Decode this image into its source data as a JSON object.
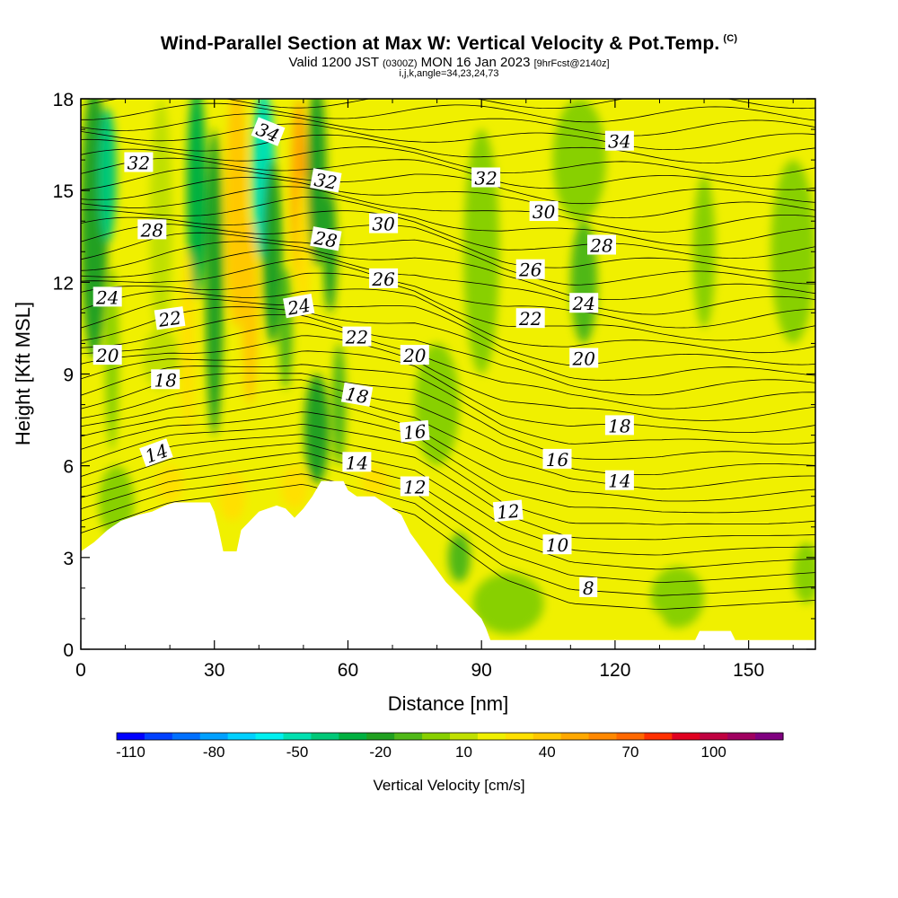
{
  "header": {
    "title": "Wind-Parallel Section at Max W: Vertical Velocity & Pot.Temp.",
    "title_mark": "(C)",
    "subtitle_prefix": "Valid 1200 JST",
    "subtitle_zulu": "(0300Z)",
    "subtitle_date": "MON 16 Jan 2023",
    "subtitle_forecast": "[9hrFcst@2140z]",
    "params": "i,j,k,angle=34,23,24,73"
  },
  "chart_data": {
    "type": "heatmap",
    "xlabel": "Distance [nm]",
    "ylabel": "Height [Kft MSL]",
    "xlim": [
      0,
      165
    ],
    "ylim": [
      0,
      18
    ],
    "x_ticks": [
      0,
      30,
      60,
      90,
      120,
      150
    ],
    "y_ticks": [
      0,
      3,
      6,
      9,
      12,
      15,
      18
    ],
    "colorbar": {
      "title": "Vertical Velocity [cm/s]",
      "min": -115,
      "max": 125,
      "step": 10,
      "tick_labels": [
        "-110",
        "-80",
        "-50",
        "-20",
        "10",
        "40",
        "70",
        "100"
      ],
      "tick_values": [
        -110,
        -80,
        -50,
        -20,
        10,
        40,
        70,
        100
      ],
      "colors": [
        "#0000ff",
        "#0040ff",
        "#0070ff",
        "#00a0ff",
        "#00d0ff",
        "#00f0f0",
        "#00e0b0",
        "#00c878",
        "#00b040",
        "#20a020",
        "#50b818",
        "#88d000",
        "#c0e000",
        "#f0f000",
        "#ffe000",
        "#ffc800",
        "#ffa800",
        "#ff8800",
        "#ff6800",
        "#ff3000",
        "#e00020",
        "#c00040",
        "#a00060",
        "#800080"
      ]
    },
    "terrain": [
      [
        0,
        3.2
      ],
      [
        3,
        3.5
      ],
      [
        6,
        3.9
      ],
      [
        9,
        4.2
      ],
      [
        13,
        4.4
      ],
      [
        16,
        4.5
      ],
      [
        19,
        4.7
      ],
      [
        21,
        4.8
      ],
      [
        29,
        4.8
      ],
      [
        30,
        4.5
      ],
      [
        31,
        3.9
      ],
      [
        32,
        3.2
      ],
      [
        35,
        3.2
      ],
      [
        36,
        3.9
      ],
      [
        38,
        4.2
      ],
      [
        40,
        4.5
      ],
      [
        42,
        4.6
      ],
      [
        44,
        4.7
      ],
      [
        46,
        4.6
      ],
      [
        48,
        4.3
      ],
      [
        50,
        4.6
      ],
      [
        52,
        5.0
      ],
      [
        54,
        5.5
      ],
      [
        59,
        5.5
      ],
      [
        60,
        5.2
      ],
      [
        62,
        5.0
      ],
      [
        66,
        5.0
      ],
      [
        68,
        4.8
      ],
      [
        70,
        4.6
      ],
      [
        72,
        4.4
      ],
      [
        73,
        4.1
      ],
      [
        74,
        3.8
      ],
      [
        76,
        3.4
      ],
      [
        78,
        3.0
      ],
      [
        80,
        2.6
      ],
      [
        82,
        2.2
      ],
      [
        84,
        1.9
      ],
      [
        86,
        1.6
      ],
      [
        88,
        1.3
      ],
      [
        90,
        1.0
      ],
      [
        91,
        0.7
      ],
      [
        92,
        0.3
      ],
      [
        96,
        0.3
      ],
      [
        97,
        0.3
      ],
      [
        138,
        0.3
      ],
      [
        139,
        0.6
      ],
      [
        146,
        0.6
      ],
      [
        147,
        0.3
      ],
      [
        165,
        0.3
      ]
    ],
    "theta_contour_labels": [
      {
        "label": "34",
        "x": 42,
        "y": 16.9,
        "angle": 22
      },
      {
        "label": "32",
        "x": 13,
        "y": 15.9,
        "angle": 0
      },
      {
        "label": "32",
        "x": 55,
        "y": 15.3,
        "angle": 10
      },
      {
        "label": "32",
        "x": 91,
        "y": 15.4,
        "angle": 0
      },
      {
        "label": "34",
        "x": 121,
        "y": 16.6,
        "angle": 0
      },
      {
        "label": "30",
        "x": 68,
        "y": 13.9,
        "angle": 0
      },
      {
        "label": "30",
        "x": 104,
        "y": 14.3,
        "angle": 0
      },
      {
        "label": "28",
        "x": 16,
        "y": 13.7,
        "angle": 0
      },
      {
        "label": "28",
        "x": 55,
        "y": 13.4,
        "angle": 10
      },
      {
        "label": "28",
        "x": 117,
        "y": 13.2,
        "angle": 0
      },
      {
        "label": "26",
        "x": 68,
        "y": 12.1,
        "angle": 0
      },
      {
        "label": "26",
        "x": 101,
        "y": 12.4,
        "angle": 0
      },
      {
        "label": "24",
        "x": 6,
        "y": 11.5,
        "angle": 0
      },
      {
        "label": "24",
        "x": 49,
        "y": 11.2,
        "angle": -10
      },
      {
        "label": "24",
        "x": 113,
        "y": 11.3,
        "angle": 0
      },
      {
        "label": "22",
        "x": 20,
        "y": 10.8,
        "angle": -8
      },
      {
        "label": "22",
        "x": 62,
        "y": 10.2,
        "angle": 0
      },
      {
        "label": "22",
        "x": 101,
        "y": 10.8,
        "angle": 0
      },
      {
        "label": "20",
        "x": 6,
        "y": 9.6,
        "angle": 0
      },
      {
        "label": "20",
        "x": 75,
        "y": 9.6,
        "angle": 0
      },
      {
        "label": "20",
        "x": 113,
        "y": 9.5,
        "angle": 0
      },
      {
        "label": "18",
        "x": 19,
        "y": 8.8,
        "angle": 0
      },
      {
        "label": "18",
        "x": 62,
        "y": 8.3,
        "angle": 10
      },
      {
        "label": "18",
        "x": 121,
        "y": 7.3,
        "angle": 0
      },
      {
        "label": "16",
        "x": 75,
        "y": 7.1,
        "angle": -5
      },
      {
        "label": "16",
        "x": 107,
        "y": 6.2,
        "angle": 0
      },
      {
        "label": "14",
        "x": 17,
        "y": 6.4,
        "angle": -20
      },
      {
        "label": "14",
        "x": 62,
        "y": 6.1,
        "angle": 0
      },
      {
        "label": "14",
        "x": 121,
        "y": 5.5,
        "angle": 0
      },
      {
        "label": "12",
        "x": 75,
        "y": 5.3,
        "angle": 0
      },
      {
        "label": "12",
        "x": 96,
        "y": 4.5,
        "angle": -5
      },
      {
        "label": "10",
        "x": 107,
        "y": 3.4,
        "angle": 0
      },
      {
        "label": "8",
        "x": 114,
        "y": 2.0,
        "angle": 0
      }
    ]
  },
  "colors": {
    "background_field": "#f0f000",
    "terrain": "#ffffff",
    "contour": "#000000"
  }
}
